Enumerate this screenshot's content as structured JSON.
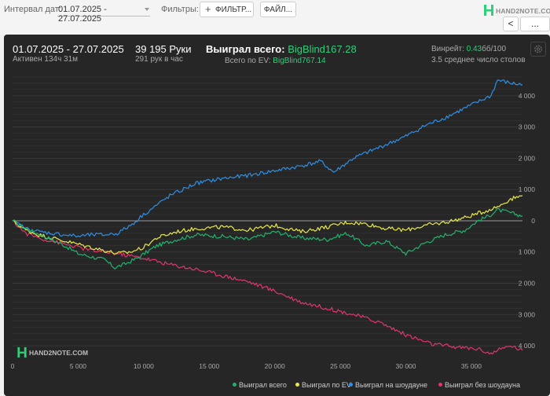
{
  "toolbar": {
    "date_interval_label": "Интервал дат:",
    "date_interval_value": "01.07.2025 - 27.07.2025",
    "filters_label": "Фильтры:",
    "filter_button": "ФИЛЬТР...",
    "file_button": "ФАЙЛ...",
    "logo_text": "HAND2NOTE.COM",
    "prev_button": "<",
    "more_button": "..."
  },
  "summary": {
    "date_range": "01.07.2025 - 27.07.2025",
    "active_time": "Активен 134ч 31м",
    "hands": "39 195 Руки",
    "hands_per_hour": "291 рук в час",
    "won_total_label": "Выиграл всего:",
    "won_total_value": "BigBlind167.28",
    "ev_total_label": "Всего по EV:",
    "ev_total_value": "BigBlind767.14",
    "winrate_label": "Винрейт:",
    "winrate_value": "0.43",
    "winrate_suffix": "бб/100",
    "avg_tables": "3.5 среднее число столов"
  },
  "watermark": "HAND2NOTE.COM",
  "colors": {
    "won": "#21b36d",
    "ev": "#e8e84a",
    "showdown": "#2f8fe6",
    "non_showdown": "#e0356f",
    "grid": "#3a3a3a",
    "zero": "#9a9a9a"
  },
  "chart_data": {
    "type": "line",
    "title": "",
    "xlabel": "",
    "ylabel": "",
    "xlim": [
      0,
      38900
    ],
    "ylim": [
      -4300,
      4700
    ],
    "x_ticks": [
      "0",
      "5 000",
      "10 000",
      "15 000",
      "20 000",
      "25 000",
      "30 000",
      "35 000"
    ],
    "y_ticks": [
      "4 000",
      "3 000",
      "2 000",
      "1 000",
      "0",
      "1 000",
      "2 000",
      "3 000",
      "4 000"
    ],
    "legend_position": "bottom-right",
    "series": [
      {
        "name": "Выиграл всего",
        "color_key": "won",
        "x": [
          0,
          1000,
          2000,
          3000,
          4000,
          5000,
          6000,
          7000,
          7800,
          8500,
          9500,
          11000,
          12500,
          14000,
          16000,
          18000,
          20000,
          22000,
          24000,
          25500,
          27000,
          28500,
          30000,
          31500,
          33000,
          34500,
          35500,
          36300,
          37000,
          38000,
          38900
        ],
        "y": [
          0,
          -250,
          -420,
          -600,
          -800,
          -1050,
          -1150,
          -1250,
          -1500,
          -1400,
          -1200,
          -800,
          -600,
          -450,
          -500,
          -600,
          -350,
          -550,
          -600,
          -400,
          -800,
          -650,
          -1050,
          -700,
          -450,
          -300,
          0,
          150,
          350,
          250,
          150
        ]
      },
      {
        "name": "Выиграл по EV",
        "color_key": "ev",
        "x": [
          0,
          1000,
          2000,
          3000,
          4000,
          5000,
          6000,
          7000,
          8000,
          9000,
          10000,
          11000,
          12500,
          14000,
          16000,
          18000,
          20000,
          22000,
          24000,
          25500,
          27000,
          28500,
          30000,
          31500,
          33000,
          34500,
          36000,
          37000,
          38000,
          38900
        ],
        "y": [
          0,
          -300,
          -450,
          -550,
          -650,
          -750,
          -850,
          -950,
          -1050,
          -1000,
          -850,
          -550,
          -350,
          -250,
          -200,
          -300,
          -150,
          -350,
          -200,
          -50,
          -100,
          -250,
          -300,
          -150,
          -50,
          100,
          300,
          450,
          700,
          800
        ]
      },
      {
        "name": "Выиграл на шоудауне",
        "color_key": "showdown",
        "x": [
          0,
          1000,
          2000,
          3000,
          4000,
          5000,
          6000,
          7000,
          8000,
          9000,
          10000,
          11000,
          12000,
          14000,
          16000,
          18000,
          20000,
          22000,
          23500,
          24500,
          26000,
          28000,
          30000,
          31500,
          33000,
          34500,
          35500,
          36500,
          37000,
          38000,
          38900
        ],
        "y": [
          0,
          -250,
          -350,
          -400,
          -450,
          -500,
          -450,
          -450,
          -400,
          -150,
          200,
          500,
          800,
          1200,
          1350,
          1450,
          1600,
          1750,
          1900,
          1550,
          2000,
          2350,
          2700,
          3050,
          3300,
          3600,
          3800,
          4000,
          4500,
          4400,
          4350
        ]
      },
      {
        "name": "Выиграл без шоудауна",
        "color_key": "non_showdown",
        "x": [
          0,
          1000,
          2000,
          3000,
          4000,
          5000,
          6000,
          7000,
          8000,
          10000,
          12000,
          14000,
          16000,
          18000,
          20000,
          22000,
          24000,
          26000,
          28000,
          30000,
          32000,
          34000,
          35500,
          36500,
          37000,
          38000,
          38900
        ],
        "y": [
          0,
          -400,
          -550,
          -650,
          -750,
          -850,
          -950,
          -1000,
          -1050,
          -1200,
          -1400,
          -1550,
          -1750,
          -1950,
          -2250,
          -2600,
          -2800,
          -3000,
          -3250,
          -3650,
          -3950,
          -4050,
          -4100,
          -4250,
          -4150,
          -4000,
          -4150
        ]
      }
    ]
  }
}
